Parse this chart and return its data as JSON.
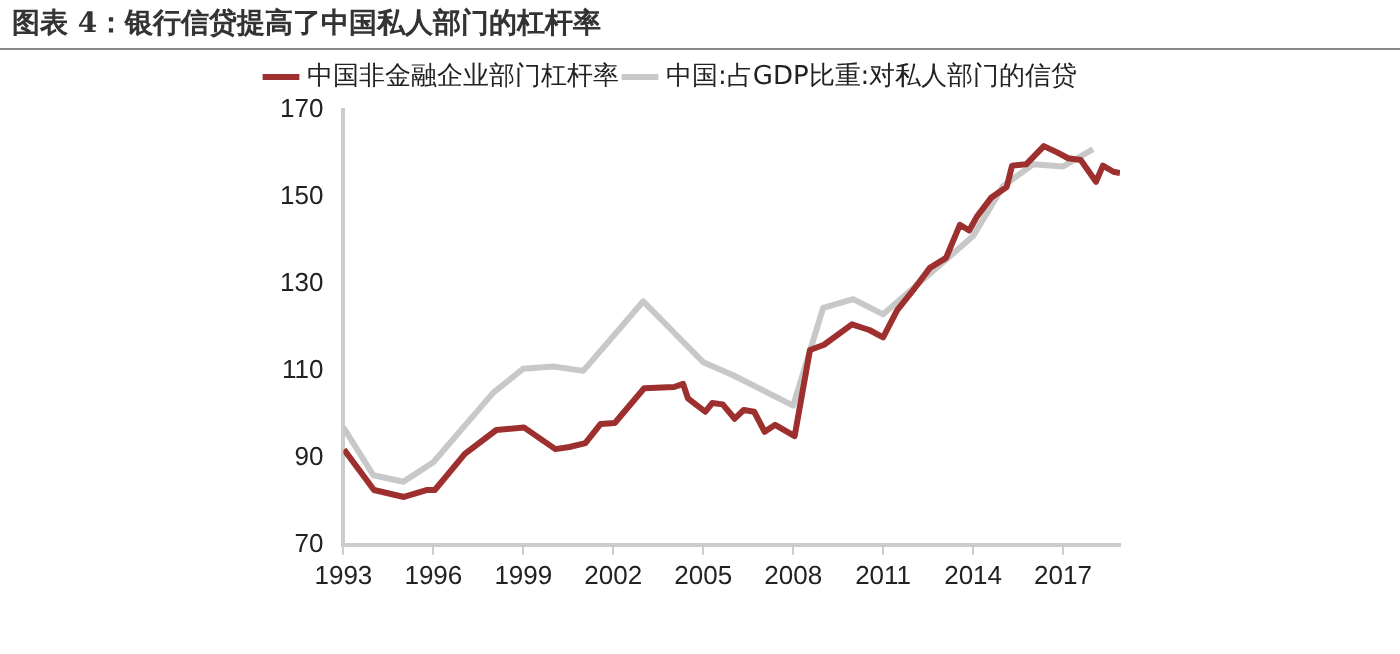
{
  "chart_data": {
    "type": "line",
    "title": "图表 4：银行信贷提高了中国私人部门的杠杆率",
    "series": [
      {
        "name": "中国非金融企业部门杠杆率",
        "color": "#9e2f2f",
        "x": [
          1993.02,
          1994.02,
          1995.02,
          1995.77,
          1996.05,
          1997.05,
          1998.1,
          1999.02,
          2000.07,
          2000.54,
          2001.07,
          2001.58,
          2002.05,
          2003.03,
          2004.03,
          2004.33,
          2004.49,
          2005.07,
          2005.3,
          2005.65,
          2006.05,
          2006.35,
          2006.7,
          2007.05,
          2007.4,
          2008.05,
          2008.56,
          2009.03,
          2009.96,
          2010.54,
          2011.0,
          2011.47,
          2012.05,
          2012.56,
          2013.1,
          2013.56,
          2013.87,
          2014.14,
          2014.6,
          2015.12,
          2015.3,
          2015.77,
          2016.36,
          2016.82,
          2017.17,
          2017.59,
          2018.1,
          2018.33,
          2018.68,
          2018.9
        ],
        "values": [
          91.9,
          82.6,
          81,
          82.6,
          82.6,
          90.9,
          96.4,
          97,
          92,
          92.5,
          93.4,
          97.8,
          98,
          106,
          106.3,
          107,
          103.7,
          100.6,
          102.6,
          102.3,
          99,
          101,
          100.6,
          96,
          97.6,
          95,
          114.8,
          116,
          120.7,
          119.4,
          117.7,
          124,
          129,
          133.7,
          136,
          143.6,
          142.3,
          145.6,
          149.8,
          152.3,
          157.2,
          157.5,
          161.7,
          160.2,
          158.9,
          158.5,
          153.5,
          157.2,
          155.8,
          155.5
        ]
      },
      {
        "name": "中国:占GDP比重:对私人部门的信贷",
        "color": "#c8c8c8",
        "x": [
          1993,
          1994,
          1995,
          1996,
          1997,
          1998,
          1999,
          2000,
          2001,
          2002,
          2003,
          2004,
          2005,
          2006,
          2007,
          2008,
          2009,
          2010,
          2011,
          2012,
          2013,
          2014,
          2015,
          2016,
          2017,
          2018
        ],
        "values": [
          97,
          86,
          84.5,
          89,
          97,
          105,
          110.5,
          111,
          110,
          118,
          126,
          119,
          112,
          109,
          105.5,
          102,
          124.5,
          126.5,
          123,
          129,
          135,
          141,
          152.5,
          157.5,
          157,
          161
        ]
      }
    ],
    "xlim": [
      1993,
      2018.9
    ],
    "xticks": [
      1993,
      1996,
      1999,
      2002,
      2005,
      2008,
      2011,
      2014,
      2017
    ],
    "ylim": [
      70,
      170
    ],
    "yticks": [
      70,
      90,
      110,
      130,
      150,
      170
    ],
    "grid": false,
    "legend": "top",
    "marker": "none",
    "line_style": "solid"
  }
}
